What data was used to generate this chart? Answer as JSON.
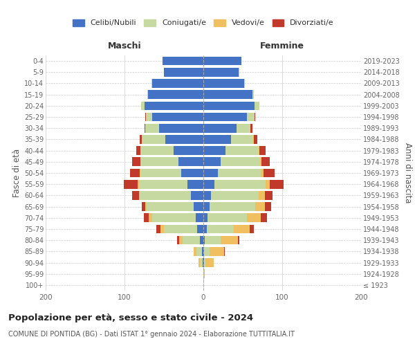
{
  "age_groups": [
    "100+",
    "95-99",
    "90-94",
    "85-89",
    "80-84",
    "75-79",
    "70-74",
    "65-69",
    "60-64",
    "55-59",
    "50-54",
    "45-49",
    "40-44",
    "35-39",
    "30-34",
    "25-29",
    "20-24",
    "15-19",
    "10-14",
    "5-9",
    "0-4"
  ],
  "birth_years": [
    "≤ 1923",
    "1924-1928",
    "1929-1933",
    "1934-1938",
    "1939-1943",
    "1944-1948",
    "1949-1953",
    "1954-1958",
    "1959-1963",
    "1964-1968",
    "1969-1973",
    "1974-1978",
    "1979-1983",
    "1984-1988",
    "1989-1993",
    "1994-1998",
    "1999-2003",
    "2004-2008",
    "2009-2013",
    "2014-2018",
    "2019-2023"
  ],
  "maschi": {
    "celibi": [
      0,
      0,
      1,
      2,
      4,
      8,
      10,
      12,
      16,
      20,
      28,
      32,
      38,
      48,
      56,
      65,
      75,
      70,
      65,
      50,
      52
    ],
    "coniugati": [
      0,
      0,
      3,
      7,
      22,
      42,
      55,
      60,
      65,
      62,
      52,
      48,
      42,
      30,
      18,
      8,
      4,
      1,
      1,
      0,
      0
    ],
    "vedovi": [
      0,
      0,
      2,
      3,
      5,
      4,
      4,
      2,
      1,
      1,
      1,
      0,
      0,
      0,
      0,
      0,
      0,
      0,
      0,
      0,
      0
    ],
    "divorziati": [
      0,
      0,
      0,
      0,
      2,
      6,
      6,
      4,
      8,
      18,
      12,
      10,
      5,
      3,
      1,
      1,
      0,
      0,
      0,
      0,
      0
    ]
  },
  "femmine": {
    "nubili": [
      0,
      0,
      1,
      1,
      2,
      4,
      5,
      8,
      10,
      14,
      18,
      22,
      28,
      35,
      42,
      55,
      65,
      62,
      52,
      45,
      48
    ],
    "coniugate": [
      0,
      0,
      2,
      7,
      20,
      35,
      50,
      58,
      60,
      65,
      55,
      50,
      42,
      28,
      18,
      10,
      6,
      2,
      1,
      1,
      0
    ],
    "vedove": [
      0,
      2,
      10,
      18,
      22,
      20,
      18,
      12,
      8,
      5,
      3,
      2,
      1,
      1,
      0,
      0,
      0,
      0,
      0,
      0,
      0
    ],
    "divorziate": [
      0,
      0,
      0,
      1,
      2,
      5,
      8,
      8,
      10,
      18,
      14,
      10,
      8,
      4,
      2,
      1,
      0,
      0,
      0,
      0,
      0
    ]
  },
  "colors": {
    "celibi_nubili": "#4472c4",
    "coniugati": "#c5d9a0",
    "vedovi": "#f0c060",
    "divorziati": "#c0392b"
  },
  "xlim": 200,
  "title": "Popolazione per età, sesso e stato civile - 2024",
  "subtitle": "COMUNE DI PONTIDA (BG) - Dati ISTAT 1° gennaio 2024 - Elaborazione TUTTITALIA.IT",
  "ylabel_left": "Fasce di età",
  "ylabel_right": "Anni di nascita",
  "xlabel_left": "Maschi",
  "xlabel_right": "Femmine",
  "bg_color": "#ffffff",
  "grid_color": "#cccccc",
  "figsize": [
    6.0,
    5.0
  ],
  "dpi": 100
}
